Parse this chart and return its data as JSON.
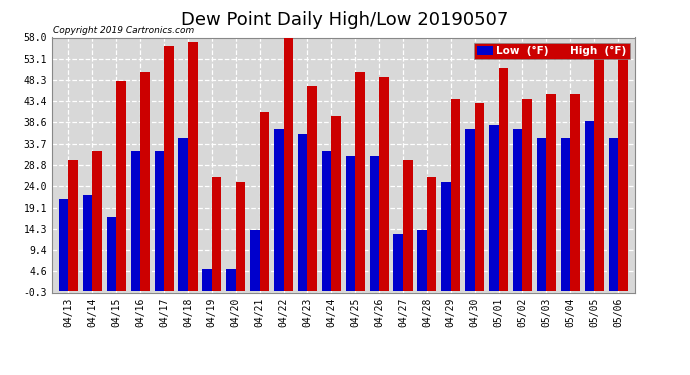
{
  "title": "Dew Point Daily High/Low 20190507",
  "copyright": "Copyright 2019 Cartronics.com",
  "dates": [
    "04/13",
    "04/14",
    "04/15",
    "04/16",
    "04/17",
    "04/18",
    "04/19",
    "04/20",
    "04/21",
    "04/22",
    "04/23",
    "04/24",
    "04/25",
    "04/26",
    "04/27",
    "04/28",
    "04/29",
    "04/30",
    "05/01",
    "05/02",
    "05/03",
    "05/04",
    "05/05",
    "05/06"
  ],
  "low_values": [
    21,
    22,
    17,
    32,
    32,
    35,
    5,
    5,
    14,
    37,
    36,
    32,
    31,
    31,
    13,
    14,
    25,
    37,
    38,
    37,
    35,
    35,
    39,
    35
  ],
  "high_values": [
    30,
    32,
    48,
    50,
    56,
    57,
    26,
    25,
    41,
    58,
    47,
    40,
    50,
    49,
    30,
    26,
    44,
    43,
    51,
    44,
    45,
    45,
    54,
    56
  ],
  "low_color": "#0000cc",
  "high_color": "#cc0000",
  "bg_color": "#ffffff",
  "plot_bg_color": "#d8d8d8",
  "grid_color": "#ffffff",
  "border_color": "#888888",
  "ylim_min": -0.3,
  "ylim_max": 58.0,
  "yticks": [
    -0.3,
    4.6,
    9.4,
    14.3,
    19.1,
    24.0,
    28.8,
    33.7,
    38.6,
    43.4,
    48.3,
    53.1,
    58.0
  ],
  "title_fontsize": 13,
  "tick_fontsize": 7,
  "bar_width": 0.4,
  "legend_fontsize": 7.5
}
